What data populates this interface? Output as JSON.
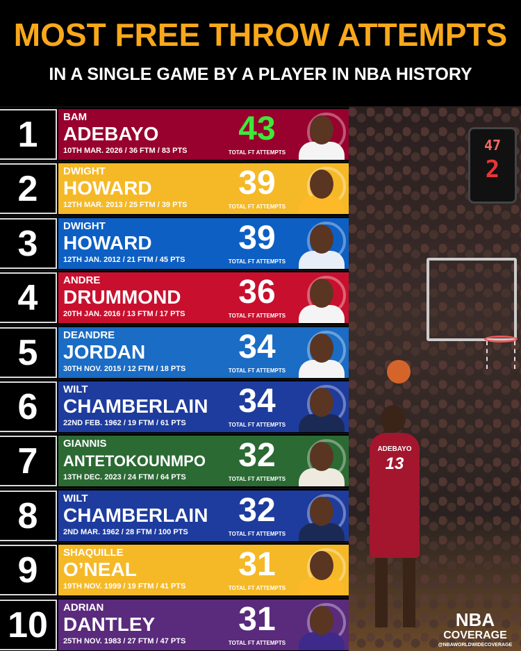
{
  "header": {
    "title": "MOST FREE THROW ATTEMPTS",
    "subtitle": "IN A SINGLE GAME BY A PLAYER IN NBA HISTORY"
  },
  "stat_label": "TOTAL FT ATTEMPTS",
  "rows": [
    {
      "rank": "1",
      "first": "BAM",
      "last": "ADEBAYO",
      "details": "10TH MAR. 2026 / 36 FTM / 83 PTS",
      "attempts": "43",
      "team_color": "#98002e",
      "number_color": "#3ee83a",
      "jersey_color": "#f4f4f4"
    },
    {
      "rank": "2",
      "first": "DWIGHT",
      "last": "HOWARD",
      "details": "12TH MAR. 2013 / 25 FTM / 39 PTS",
      "attempts": "39",
      "team_color": "#f5b927",
      "number_color": "#ffffff",
      "jersey_color": "#fdb927"
    },
    {
      "rank": "3",
      "first": "DWIGHT",
      "last": "HOWARD",
      "details": "12TH JAN. 2012 / 21 FTM / 45 PTS",
      "attempts": "39",
      "team_color": "#0d5fc4",
      "number_color": "#ffffff",
      "jersey_color": "#e8eef8"
    },
    {
      "rank": "4",
      "first": "ANDRE",
      "last": "DRUMMOND",
      "details": "20TH JAN. 2016 / 13 FTM / 17 PTS",
      "attempts": "36",
      "team_color": "#c8102e",
      "number_color": "#ffffff",
      "jersey_color": "#f4f4f4"
    },
    {
      "rank": "5",
      "first": "DEANDRE",
      "last": "JORDAN",
      "details": "30TH NOV. 2015 / 12 FTM / 18 PTS",
      "attempts": "34",
      "team_color": "#1a6cc4",
      "number_color": "#ffffff",
      "jersey_color": "#f4f4f4"
    },
    {
      "rank": "6",
      "first": "WILT",
      "last": "CHAMBERLAIN",
      "details": "22ND FEB. 1962 / 19 FTM / 61 PTS",
      "attempts": "34",
      "team_color": "#1e3c9e",
      "number_color": "#ffffff",
      "jersey_color": "#1b2a55"
    },
    {
      "rank": "7",
      "first": "GIANNIS",
      "last": "ANTETOKOUNMPO",
      "details": "13TH DEC. 2023 / 24 FTM / 64 PTS",
      "attempts": "32",
      "team_color": "#2b6a33",
      "number_color": "#ffffff",
      "jersey_color": "#eeeadf"
    },
    {
      "rank": "8",
      "first": "WILT",
      "last": "CHAMBERLAIN",
      "details": "2ND MAR. 1962 / 28 FTM / 100 PTS",
      "attempts": "32",
      "team_color": "#1e3c9e",
      "number_color": "#ffffff",
      "jersey_color": "#1b2a55"
    },
    {
      "rank": "9",
      "first": "SHAQUILLE",
      "last": "O’NEAL",
      "details": "19TH NOV. 1999 / 19 FTM / 41 PTS",
      "attempts": "31",
      "team_color": "#f5b927",
      "number_color": "#ffffff",
      "jersey_color": "#fdb927"
    },
    {
      "rank": "10",
      "first": "ADRIAN",
      "last": "DANTLEY",
      "details": "25TH NOV. 1983 / 27 FTM / 47 PTS",
      "attempts": "31",
      "team_color": "#5a2a7c",
      "number_color": "#ffffff",
      "jersey_color": "#3d2a8a"
    }
  ],
  "photo": {
    "jersey_name": "ADEBAYO",
    "jersey_number": "13",
    "shot_clock": "47",
    "shot_clock_2": "2"
  },
  "brand": {
    "line1": "NBA",
    "line2": "COVERAGE",
    "handle": "@NBAWORLDWIDECOVERAGE"
  },
  "colors": {
    "title": "#f9a81b",
    "background": "#000000"
  }
}
